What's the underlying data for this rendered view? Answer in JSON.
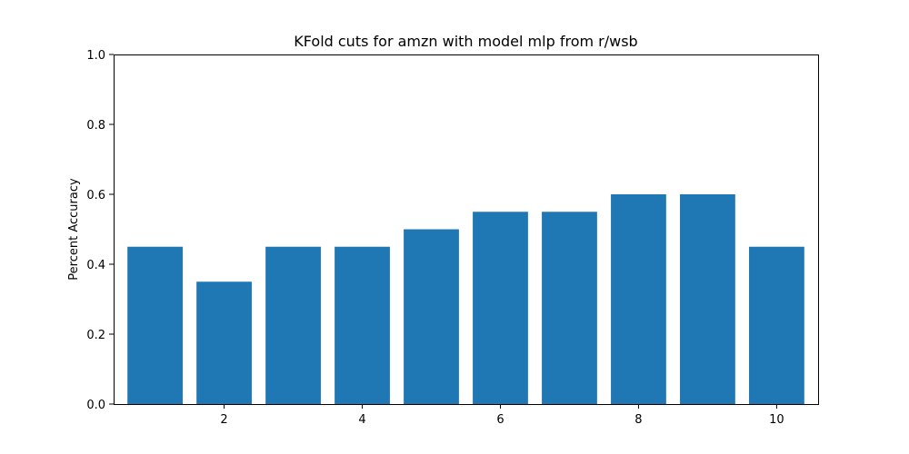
{
  "chart_data": {
    "type": "bar",
    "title": "KFold cuts for amzn with model mlp from r/wsb",
    "xlabel": "",
    "ylabel": "Percent Accuracy",
    "x": [
      1,
      2,
      3,
      4,
      5,
      6,
      7,
      8,
      9,
      10
    ],
    "values": [
      0.45,
      0.35,
      0.45,
      0.45,
      0.5,
      0.55,
      0.55,
      0.6,
      0.6,
      0.45
    ],
    "xlim": [
      0.4,
      10.6
    ],
    "ylim": [
      0,
      1.0
    ],
    "xticks": [
      2,
      4,
      6,
      8,
      10
    ],
    "xtick_labels": [
      "2",
      "4",
      "6",
      "8",
      "10"
    ],
    "yticks": [
      0.0,
      0.2,
      0.4,
      0.6,
      0.8,
      1.0
    ],
    "ytick_labels": [
      "0.0",
      "0.2",
      "0.4",
      "0.6",
      "0.8",
      "1.0"
    ],
    "bar_width": 0.8,
    "bar_color": "#1f77b4",
    "grid": false,
    "legend": "none"
  }
}
